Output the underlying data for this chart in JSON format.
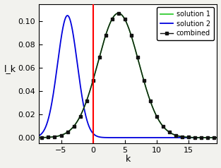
{
  "xlim": [
    -8.5,
    19.5
  ],
  "ylim": [
    -0.005,
    0.115
  ],
  "xlabel": "k",
  "ylabel": "l_k",
  "red_line_x": 0,
  "sol1_mean": 4.0,
  "sol1_std": 3.2,
  "sol1_amp": 0.107,
  "sol2_mean": -4.0,
  "sol2_std": 1.55,
  "sol2_amp": 0.105,
  "color_sol1": "#33cc33",
  "color_sol2": "#0000dd",
  "color_combined": "#111111",
  "color_redline": "#ff0000",
  "legend_labels": [
    "solution 1",
    "solution 2",
    "combined"
  ],
  "bg_color": "#f2f2ee",
  "plot_bg": "#ffffff",
  "yticks": [
    0,
    0.02,
    0.04,
    0.06,
    0.08,
    0.1
  ],
  "xticks": [
    -5,
    0,
    5,
    10,
    15
  ],
  "tick_fontsize": 8,
  "label_fontsize": 9,
  "legend_fontsize": 7
}
